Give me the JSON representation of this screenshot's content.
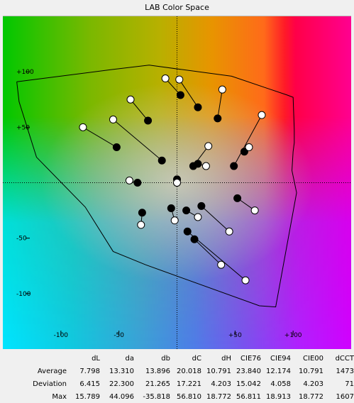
{
  "title": "LAB Color Space",
  "chart_data": {
    "type": "scatter",
    "title": "LAB Color Space",
    "xlabel": "",
    "ylabel": "",
    "xlim": [
      -150,
      150
    ],
    "ylim": [
      -150,
      150
    ],
    "x_ticks": [
      {
        "value": -100,
        "label": "-100"
      },
      {
        "value": -50,
        "label": "-50"
      },
      {
        "value": 50,
        "label": "+50"
      },
      {
        "value": 100,
        "label": "+100"
      }
    ],
    "y_ticks": [
      {
        "value": 100,
        "label": "+100"
      },
      {
        "value": 50,
        "label": "+50"
      },
      {
        "value": -50,
        "label": "-50"
      },
      {
        "value": -100,
        "label": "-100"
      }
    ],
    "gamut_outline": [
      [
        -138,
        91
      ],
      [
        -56,
        102
      ],
      [
        -24,
        106
      ],
      [
        47,
        96
      ],
      [
        95,
        79
      ],
      [
        100,
        77
      ],
      [
        101,
        48
      ],
      [
        101,
        36
      ],
      [
        100,
        28
      ],
      [
        99,
        11
      ],
      [
        103,
        -9
      ],
      [
        85,
        -112
      ],
      [
        71,
        -111
      ],
      [
        -27,
        -74
      ],
      [
        -55,
        -62
      ],
      [
        -79,
        -22
      ],
      [
        -121,
        23
      ],
      [
        -136,
        73
      ],
      [
        -138,
        91
      ]
    ],
    "series": [
      {
        "name": "target",
        "marker": "hollow",
        "points": [
          [
            -10,
            94
          ],
          [
            2,
            93
          ],
          [
            39,
            84
          ],
          [
            73,
            61
          ],
          [
            62,
            32
          ],
          [
            27,
            33
          ],
          [
            25,
            15
          ],
          [
            -81,
            50
          ],
          [
            -55,
            57
          ],
          [
            -40,
            75
          ],
          [
            -41,
            2
          ],
          [
            67,
            -25
          ],
          [
            45,
            -44
          ],
          [
            18,
            -31
          ],
          [
            -2,
            -34
          ],
          [
            -31,
            -38
          ],
          [
            38,
            -74
          ],
          [
            59,
            -88
          ],
          [
            0,
            0
          ]
        ]
      },
      {
        "name": "measured",
        "marker": "filled",
        "points": [
          [
            -25,
            56
          ],
          [
            0,
            0
          ],
          [
            -13,
            20
          ],
          [
            3,
            79
          ],
          [
            18,
            68
          ],
          [
            35,
            58
          ],
          [
            58,
            28
          ],
          [
            49,
            15
          ],
          [
            18,
            17
          ],
          [
            14,
            15
          ],
          [
            -52,
            32
          ],
          [
            -34,
            0
          ],
          [
            52,
            -14
          ],
          [
            21,
            -21
          ],
          [
            -30,
            -27
          ],
          [
            -5,
            -23
          ],
          [
            8,
            -25
          ],
          [
            9,
            -44
          ],
          [
            15,
            -51
          ],
          [
            0,
            3
          ]
        ]
      }
    ],
    "links": [
      [
        [
          -10,
          94
        ],
        [
          3,
          79
        ]
      ],
      [
        [
          2,
          93
        ],
        [
          18,
          68
        ]
      ],
      [
        [
          39,
          84
        ],
        [
          35,
          58
        ]
      ],
      [
        [
          73,
          61
        ],
        [
          49,
          15
        ]
      ],
      [
        [
          62,
          32
        ],
        [
          58,
          28
        ]
      ],
      [
        [
          27,
          33
        ],
        [
          14,
          15
        ]
      ],
      [
        [
          25,
          15
        ],
        [
          18,
          17
        ]
      ],
      [
        [
          -81,
          50
        ],
        [
          -52,
          32
        ]
      ],
      [
        [
          -55,
          57
        ],
        [
          -13,
          20
        ]
      ],
      [
        [
          -40,
          75
        ],
        [
          -25,
          56
        ]
      ],
      [
        [
          -41,
          2
        ],
        [
          -34,
          0
        ]
      ],
      [
        [
          67,
          -25
        ],
        [
          52,
          -14
        ]
      ],
      [
        [
          45,
          -44
        ],
        [
          21,
          -21
        ]
      ],
      [
        [
          18,
          -31
        ],
        [
          8,
          -25
        ]
      ],
      [
        [
          -2,
          -34
        ],
        [
          -5,
          -23
        ]
      ],
      [
        [
          -31,
          -38
        ],
        [
          -30,
          -27
        ]
      ],
      [
        [
          38,
          -74
        ],
        [
          15,
          -51
        ]
      ],
      [
        [
          59,
          -88
        ],
        [
          9,
          -44
        ]
      ]
    ],
    "grid": false
  },
  "stats": {
    "columns": [
      "dL",
      "da",
      "db",
      "dC",
      "dH",
      "CIE76",
      "CIE94",
      "CIE00",
      "dCCT"
    ],
    "rows": [
      {
        "label": "Average",
        "values": [
          "7.798",
          "13.310",
          "13.896",
          "20.018",
          "10.791",
          "23.840",
          "12.174",
          "10.791",
          "1473"
        ]
      },
      {
        "label": "Deviation",
        "values": [
          "6.415",
          "22.300",
          "21.265",
          "17.221",
          "4.203",
          "15.042",
          "4.058",
          "4.203",
          "71"
        ]
      },
      {
        "label": "Max",
        "values": [
          "15.789",
          "44.096",
          "-35.818",
          "56.810",
          "18.772",
          "56.811",
          "18.913",
          "18.772",
          "1607"
        ]
      }
    ]
  },
  "colors": {
    "background": "#f0f0f0",
    "marker_fill_target": "#ffffff",
    "marker_fill_measured": "#000000",
    "outline": "#000000"
  }
}
